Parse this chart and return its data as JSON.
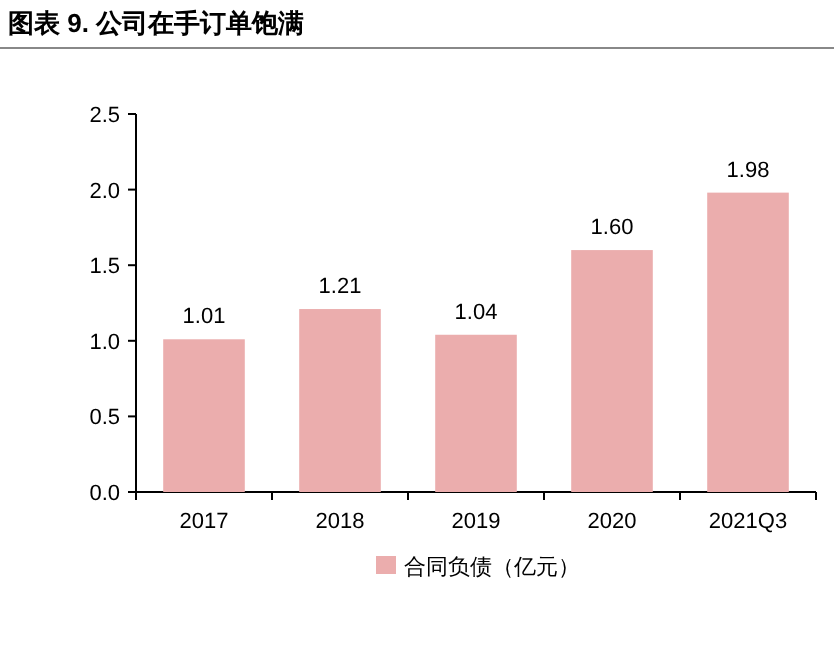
{
  "chart_data": {
    "type": "bar",
    "title": "图表 9. 公司在手订单饱满",
    "categories": [
      "2017",
      "2018",
      "2019",
      "2020",
      "2021Q3"
    ],
    "series": [
      {
        "name": "合同负债（亿元）",
        "color": "#ebadad",
        "values": [
          1.01,
          1.21,
          1.04,
          1.6,
          1.98
        ],
        "value_labels": [
          "1.01",
          "1.21",
          "1.04",
          "1.60",
          "1.98"
        ]
      }
    ],
    "ylim": [
      0,
      2.5
    ],
    "yticks": [
      {
        "value": 0,
        "label": "0.0"
      },
      0.5,
      {
        "value": 1,
        "label": "1.0"
      },
      1.5,
      {
        "value": 2,
        "label": "2.0"
      },
      2.5
    ],
    "legend": "bottom",
    "grid": false
  }
}
